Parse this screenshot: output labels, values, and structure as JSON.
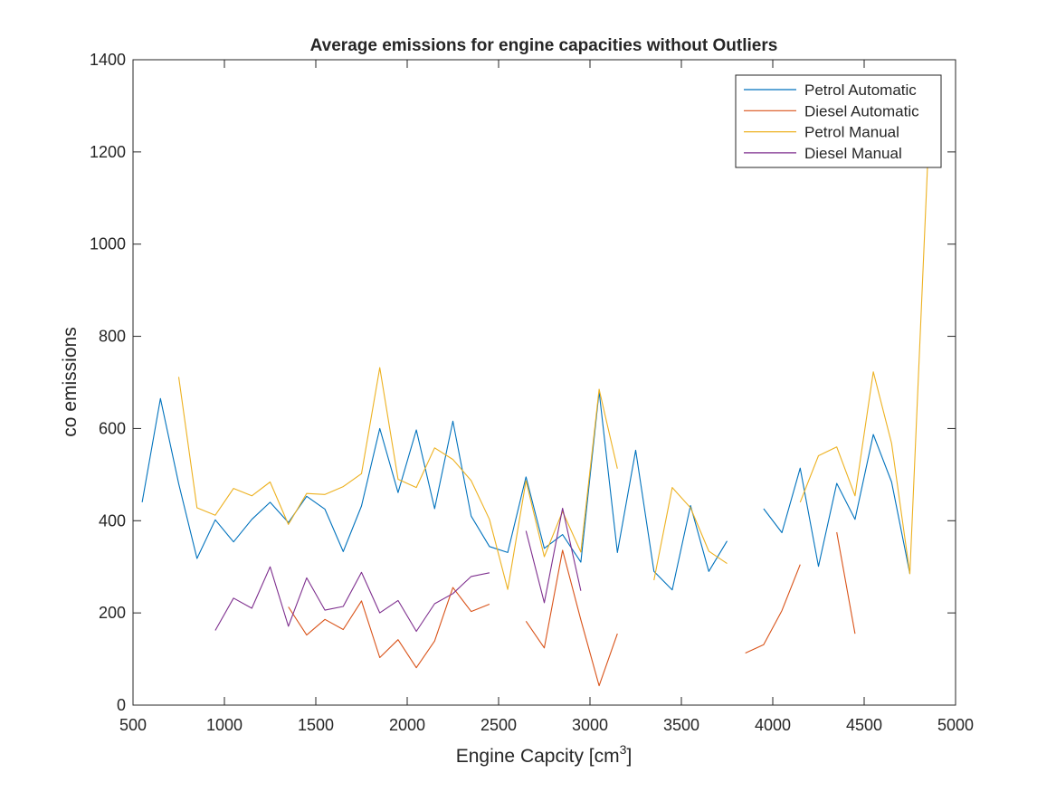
{
  "chart_data": {
    "type": "line",
    "title": "Average emissions for engine capacities without Outliers",
    "xlabel": "Engine Capcity [cm",
    "xlabel_sup": "3",
    "xlabel_suffix": "]",
    "ylabel": "co emissions",
    "xlim": [
      500,
      5000
    ],
    "ylim": [
      0,
      1400
    ],
    "xticks": [
      500,
      1000,
      1500,
      2000,
      2500,
      3000,
      3500,
      4000,
      4500,
      5000
    ],
    "yticks": [
      0,
      200,
      400,
      600,
      800,
      1000,
      1200,
      1400
    ],
    "grid": false,
    "legend_position": "top-right",
    "series": [
      {
        "name": "Petrol Automatic",
        "color": "#0072BD",
        "points": [
          [
            550,
            440
          ],
          [
            650,
            665
          ],
          [
            750,
            480
          ],
          [
            850,
            318
          ],
          [
            950,
            402
          ],
          [
            1050,
            354
          ],
          [
            1150,
            403
          ],
          [
            1250,
            440
          ],
          [
            1350,
            396
          ],
          [
            1450,
            453
          ],
          [
            1550,
            425
          ],
          [
            1650,
            333
          ],
          [
            1750,
            432
          ],
          [
            1850,
            600
          ],
          [
            1950,
            461
          ],
          [
            2050,
            597
          ],
          [
            2150,
            426
          ],
          [
            2250,
            616
          ],
          [
            2350,
            410
          ],
          [
            2450,
            344
          ],
          [
            2550,
            331
          ],
          [
            2650,
            495
          ],
          [
            2750,
            340
          ],
          [
            2850,
            370
          ],
          [
            2950,
            310
          ],
          [
            3050,
            680
          ],
          [
            3150,
            331
          ],
          [
            3250,
            553
          ],
          [
            3350,
            290
          ],
          [
            3450,
            250
          ],
          [
            3550,
            433
          ],
          [
            3650,
            290
          ],
          [
            3750,
            356
          ],
          null,
          [
            3950,
            426
          ],
          [
            4050,
            374
          ],
          [
            4150,
            514
          ],
          [
            4250,
            301
          ],
          [
            4350,
            481
          ],
          [
            4450,
            403
          ],
          [
            4550,
            587
          ],
          [
            4650,
            484
          ],
          [
            4750,
            285
          ]
        ]
      },
      {
        "name": "Diesel Automatic",
        "color": "#D95319",
        "points": [
          [
            1350,
            213
          ],
          [
            1450,
            152
          ],
          [
            1550,
            186
          ],
          [
            1650,
            164
          ],
          [
            1750,
            226
          ],
          [
            1850,
            103
          ],
          [
            1950,
            142
          ],
          [
            2050,
            81
          ],
          [
            2150,
            139
          ],
          [
            2250,
            255
          ],
          [
            2350,
            203
          ],
          [
            2450,
            219
          ],
          null,
          [
            2650,
            182
          ],
          [
            2750,
            124
          ],
          [
            2850,
            336
          ],
          [
            2950,
            185
          ],
          [
            3050,
            42
          ],
          [
            3150,
            155
          ],
          null,
          [
            3850,
            113
          ],
          [
            3950,
            131
          ],
          [
            4050,
            205
          ],
          [
            4150,
            305
          ],
          null,
          [
            4350,
            375
          ],
          [
            4450,
            155
          ]
        ]
      },
      {
        "name": "Petrol Manual",
        "color": "#EDB120",
        "points": [
          [
            750,
            712
          ],
          [
            850,
            428
          ],
          [
            950,
            412
          ],
          [
            1050,
            470
          ],
          [
            1150,
            454
          ],
          [
            1250,
            484
          ],
          [
            1350,
            392
          ],
          [
            1450,
            459
          ],
          [
            1550,
            457
          ],
          [
            1650,
            474
          ],
          [
            1750,
            502
          ],
          [
            1850,
            732
          ],
          [
            1950,
            490
          ],
          [
            2050,
            472
          ],
          [
            2150,
            558
          ],
          [
            2250,
            533
          ],
          [
            2350,
            487
          ],
          [
            2450,
            403
          ],
          [
            2550,
            251
          ],
          [
            2650,
            487
          ],
          [
            2750,
            322
          ],
          [
            2850,
            420
          ],
          [
            2950,
            332
          ],
          [
            3050,
            685
          ],
          [
            3150,
            513
          ],
          null,
          [
            3350,
            271
          ],
          [
            3450,
            472
          ],
          [
            3550,
            428
          ],
          [
            3650,
            334
          ],
          [
            3750,
            307
          ],
          null,
          [
            4150,
            440
          ],
          [
            4250,
            541
          ],
          [
            4350,
            560
          ],
          [
            4450,
            454
          ],
          [
            4550,
            723
          ],
          [
            4650,
            568
          ],
          [
            4750,
            285
          ],
          [
            4850,
            1200
          ]
        ]
      },
      {
        "name": "Diesel Manual",
        "color": "#7E2F8E",
        "points": [
          [
            950,
            162
          ],
          [
            1050,
            232
          ],
          [
            1150,
            210
          ],
          [
            1250,
            300
          ],
          [
            1350,
            171
          ],
          [
            1450,
            276
          ],
          [
            1550,
            206
          ],
          [
            1650,
            214
          ],
          [
            1750,
            288
          ],
          [
            1850,
            200
          ],
          [
            1950,
            227
          ],
          [
            2050,
            160
          ],
          [
            2150,
            220
          ],
          [
            2250,
            242
          ],
          [
            2350,
            279
          ],
          [
            2450,
            287
          ],
          null,
          [
            2650,
            378
          ],
          [
            2750,
            222
          ],
          [
            2850,
            427
          ],
          [
            2950,
            248
          ]
        ]
      }
    ]
  }
}
